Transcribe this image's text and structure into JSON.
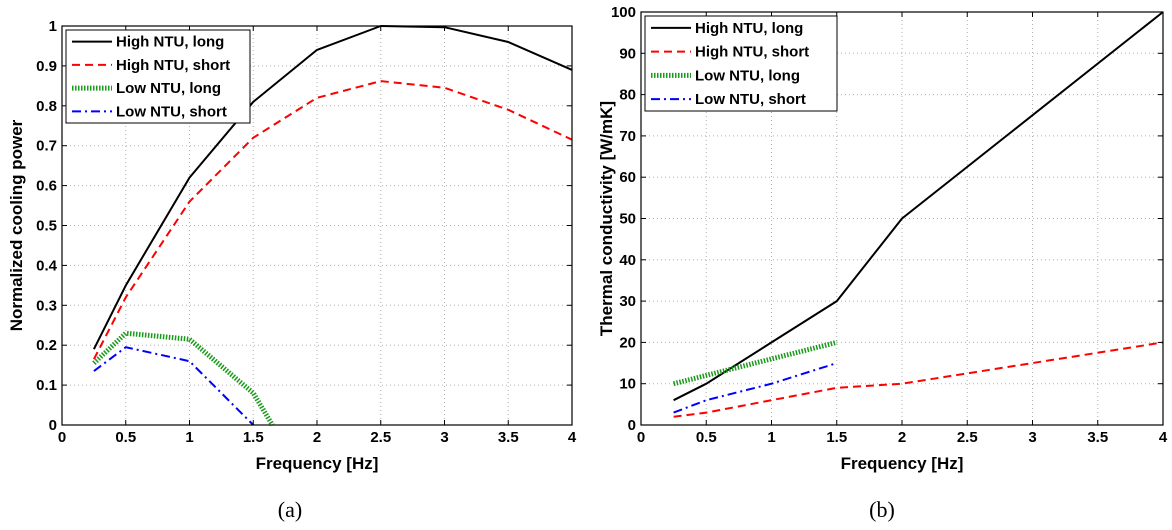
{
  "chart_data": [
    {
      "type": "line",
      "caption": "(a)",
      "xlabel": "Frequency [Hz]",
      "ylabel": "Normalized cooling power",
      "xlim": [
        0,
        4
      ],
      "ylim": [
        0,
        1
      ],
      "xticks": [
        0,
        0.5,
        1,
        1.5,
        2,
        2.5,
        3,
        3.5,
        4
      ],
      "yticks": [
        0,
        0.1,
        0.2,
        0.3,
        0.4,
        0.5,
        0.6,
        0.7,
        0.8,
        0.9,
        1
      ],
      "xtick_labels": [
        "0",
        "0.5",
        "1",
        "1.5",
        "2",
        "2.5",
        "3",
        "3.5",
        "4"
      ],
      "ytick_labels": [
        "0",
        "0.1",
        "0.2",
        "0.3",
        "0.4",
        "0.5",
        "0.6",
        "0.7",
        "0.8",
        "0.9",
        "1"
      ],
      "grid": true,
      "legend_position": "top-left",
      "series": [
        {
          "name": "High NTU, long",
          "color": "#000000",
          "style": "solid",
          "x": [
            0.25,
            0.5,
            1,
            1.5,
            2,
            2.5,
            3,
            3.5,
            4
          ],
          "y": [
            0.19,
            0.35,
            0.62,
            0.81,
            0.94,
            1.0,
            0.997,
            0.96,
            0.89
          ]
        },
        {
          "name": "High NTU, short",
          "color": "#ff0000",
          "style": "dashed",
          "x": [
            0.25,
            0.5,
            1,
            1.5,
            2,
            2.5,
            3,
            3.5,
            4
          ],
          "y": [
            0.165,
            0.32,
            0.56,
            0.72,
            0.82,
            0.862,
            0.845,
            0.79,
            0.715
          ]
        },
        {
          "name": "Low NTU, long",
          "color": "#1a9a1a",
          "style": "dotted",
          "x": [
            0.25,
            0.5,
            1,
            1.5,
            1.65
          ],
          "y": [
            0.155,
            0.23,
            0.215,
            0.08,
            0.0
          ]
        },
        {
          "name": "Low NTU, short",
          "color": "#0000ff",
          "style": "dashdot",
          "x": [
            0.25,
            0.5,
            1,
            1.5
          ],
          "y": [
            0.135,
            0.195,
            0.16,
            0.0
          ]
        }
      ]
    },
    {
      "type": "line",
      "caption": "(b)",
      "xlabel": "Frequency [Hz]",
      "ylabel": "Thermal conductivity [W/mK]",
      "xlim": [
        0,
        4
      ],
      "ylim": [
        0,
        100
      ],
      "xticks": [
        0,
        0.5,
        1,
        1.5,
        2,
        2.5,
        3,
        3.5,
        4
      ],
      "yticks": [
        0,
        10,
        20,
        30,
        40,
        50,
        60,
        70,
        80,
        90,
        100
      ],
      "xtick_labels": [
        "0",
        "0.5",
        "1",
        "1.5",
        "2",
        "2.5",
        "3",
        "3.5",
        "4"
      ],
      "ytick_labels": [
        "0",
        "10",
        "20",
        "30",
        "40",
        "50",
        "60",
        "70",
        "80",
        "90",
        "100"
      ],
      "grid": true,
      "legend_position": "top-left",
      "series": [
        {
          "name": "High NTU, long",
          "color": "#000000",
          "style": "solid",
          "x": [
            0.25,
            0.5,
            1,
            1.5,
            2,
            4
          ],
          "y": [
            6,
            10,
            20,
            30,
            50,
            100
          ]
        },
        {
          "name": "High NTU, short",
          "color": "#ff0000",
          "style": "dashed",
          "x": [
            0.25,
            0.5,
            1,
            1.5,
            2,
            4
          ],
          "y": [
            2,
            3,
            6,
            9,
            10,
            20
          ]
        },
        {
          "name": "Low NTU, long",
          "color": "#1a9a1a",
          "style": "dotted",
          "x": [
            0.25,
            0.5,
            1,
            1.5
          ],
          "y": [
            10,
            12,
            16,
            20
          ]
        },
        {
          "name": "Low NTU, short",
          "color": "#0000ff",
          "style": "dashdot",
          "x": [
            0.25,
            0.5,
            1,
            1.5
          ],
          "y": [
            3,
            6,
            10,
            15
          ]
        }
      ]
    }
  ]
}
